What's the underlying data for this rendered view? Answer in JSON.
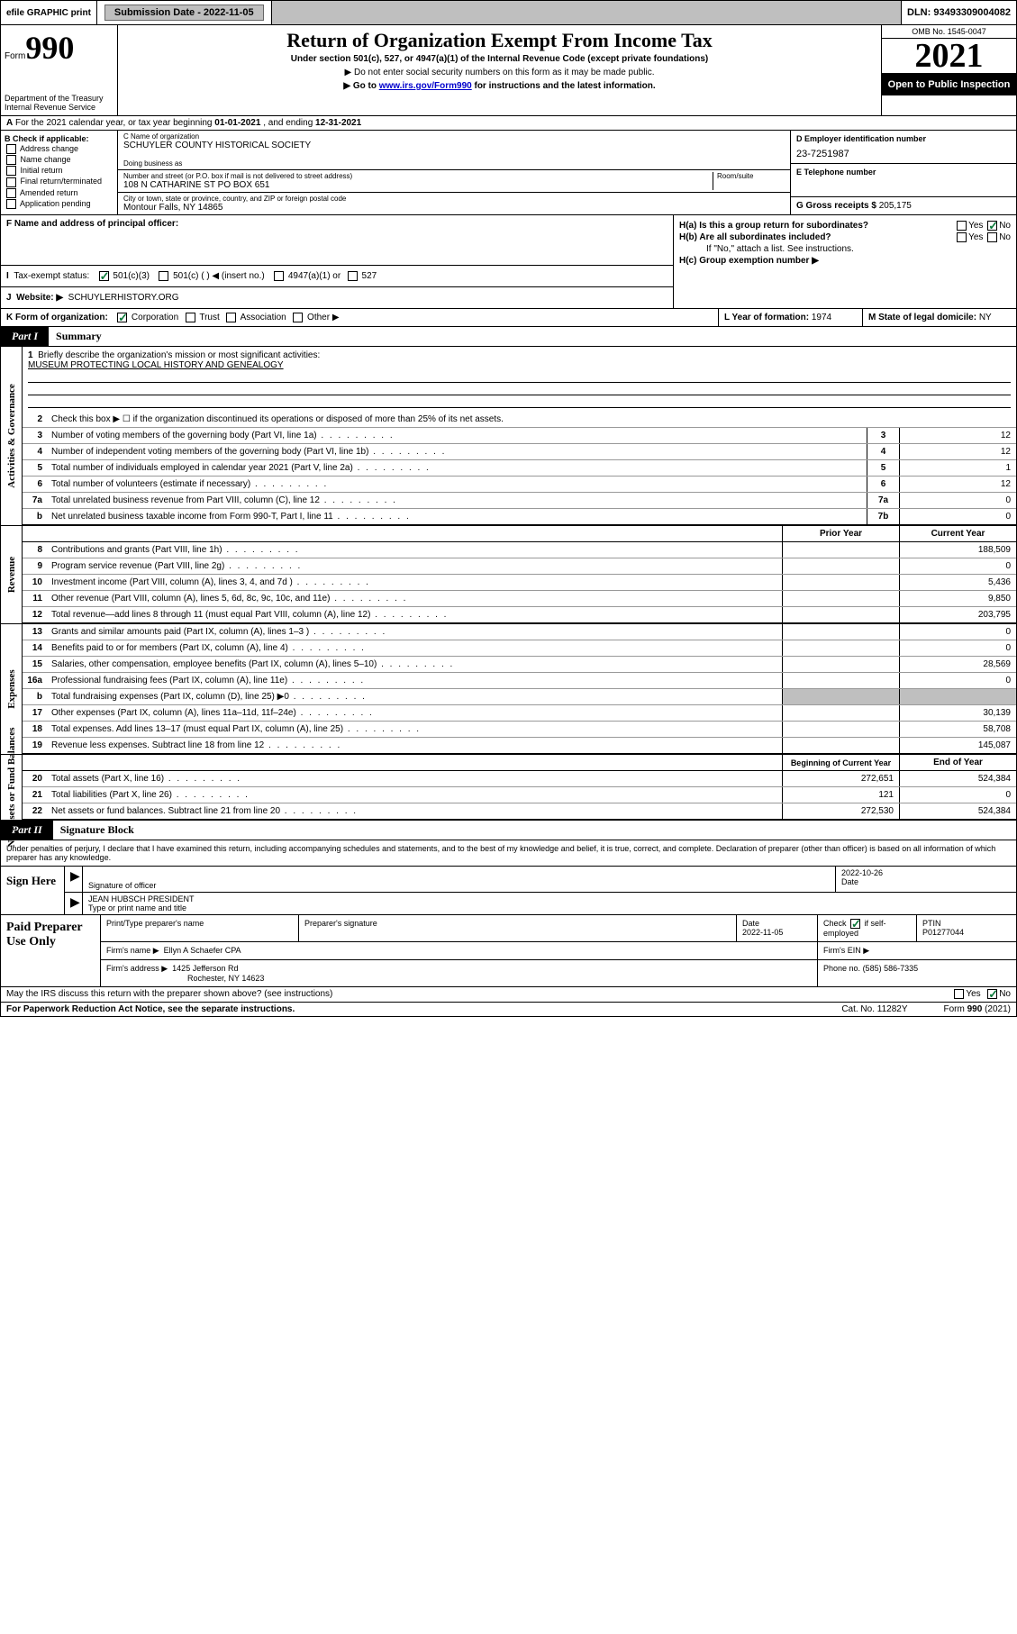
{
  "topbar": {
    "efile": "efile GRAPHIC print",
    "submission_label": "Submission Date - 2022-11-05",
    "dln": "DLN: 93493309004082"
  },
  "header": {
    "form_prefix": "Form",
    "form_number": "990",
    "dept": "Department of the Treasury",
    "irs": "Internal Revenue Service",
    "title": "Return of Organization Exempt From Income Tax",
    "subtitle": "Under section 501(c), 527, or 4947(a)(1) of the Internal Revenue Code (except private foundations)",
    "note1": "▶ Do not enter social security numbers on this form as it may be made public.",
    "note2_pre": "▶ Go to ",
    "note2_link": "www.irs.gov/Form990",
    "note2_post": " for instructions and the latest information.",
    "omb": "OMB No. 1545-0047",
    "year": "2021",
    "inspection": "Open to Public Inspection"
  },
  "row_a": {
    "label": "A",
    "text_pre": "For the 2021 calendar year, or tax year beginning ",
    "begin": "01-01-2021",
    "mid": " , and ending ",
    "end": "12-31-2021"
  },
  "section_b": {
    "label": "B Check if applicable:",
    "opts": [
      "Address change",
      "Name change",
      "Initial return",
      "Final return/terminated",
      "Amended return",
      "Application pending"
    ]
  },
  "section_c": {
    "name_label": "C Name of organization",
    "name": "SCHUYLER COUNTY HISTORICAL SOCIETY",
    "dba_label": "Doing business as",
    "addr_label": "Number and street (or P.O. box if mail is not delivered to street address)",
    "room_label": "Room/suite",
    "addr": "108 N CATHARINE ST PO BOX 651",
    "city_label": "City or town, state or province, country, and ZIP or foreign postal code",
    "city": "Montour Falls, NY  14865"
  },
  "section_d": {
    "label": "D Employer identification number",
    "val": "23-7251987",
    "e_label": "E Telephone number",
    "g_label": "G Gross receipts $",
    "g_val": "205,175"
  },
  "section_f": {
    "label": "F Name and address of principal officer:"
  },
  "section_h": {
    "ha": "H(a)  Is this a group return for subordinates?",
    "hb": "H(b)  Are all subordinates included?",
    "hb_note": "If \"No,\" attach a list. See instructions.",
    "hc": "H(c)  Group exemption number ▶",
    "yes": "Yes",
    "no": "No"
  },
  "row_i": {
    "label": "I",
    "text": "Tax-exempt status:",
    "opt1": "501(c)(3)",
    "opt2": "501(c) (   ) ◀ (insert no.)",
    "opt3": "4947(a)(1) or",
    "opt4": "527"
  },
  "row_j": {
    "label": "J",
    "text": "Website: ▶",
    "val": "SCHUYLERHISTORY.ORG"
  },
  "row_k": {
    "label": "K Form of organization:",
    "opts": [
      "Corporation",
      "Trust",
      "Association",
      "Other ▶"
    ],
    "l_label": "L Year of formation:",
    "l_val": "1974",
    "m_label": "M State of legal domicile:",
    "m_val": "NY"
  },
  "part1": {
    "label": "Part I",
    "title": "Summary"
  },
  "mission": {
    "num": "1",
    "label": "Briefly describe the organization's mission or most significant activities:",
    "text": "MUSEUM PROTECTING LOCAL HISTORY AND GENEALOGY"
  },
  "gov_lines": [
    {
      "num": "2",
      "desc": "Check this box ▶ ☐  if the organization discontinued its operations or disposed of more than 25% of its net assets.",
      "box": "",
      "val": ""
    },
    {
      "num": "3",
      "desc": "Number of voting members of the governing body (Part VI, line 1a)",
      "box": "3",
      "val": "12"
    },
    {
      "num": "4",
      "desc": "Number of independent voting members of the governing body (Part VI, line 1b)",
      "box": "4",
      "val": "12"
    },
    {
      "num": "5",
      "desc": "Total number of individuals employed in calendar year 2021 (Part V, line 2a)",
      "box": "5",
      "val": "1"
    },
    {
      "num": "6",
      "desc": "Total number of volunteers (estimate if necessary)",
      "box": "6",
      "val": "12"
    },
    {
      "num": "7a",
      "desc": "Total unrelated business revenue from Part VIII, column (C), line 12",
      "box": "7a",
      "val": "0"
    },
    {
      "num": "b",
      "desc": "Net unrelated business taxable income from Form 990-T, Part I, line 11",
      "box": "7b",
      "val": "0"
    }
  ],
  "rev_header": {
    "prior": "Prior Year",
    "current": "Current Year"
  },
  "rev_lines": [
    {
      "num": "8",
      "desc": "Contributions and grants (Part VIII, line 1h)",
      "prior": "",
      "cur": "188,509"
    },
    {
      "num": "9",
      "desc": "Program service revenue (Part VIII, line 2g)",
      "prior": "",
      "cur": "0"
    },
    {
      "num": "10",
      "desc": "Investment income (Part VIII, column (A), lines 3, 4, and 7d )",
      "prior": "",
      "cur": "5,436"
    },
    {
      "num": "11",
      "desc": "Other revenue (Part VIII, column (A), lines 5, 6d, 8c, 9c, 10c, and 11e)",
      "prior": "",
      "cur": "9,850"
    },
    {
      "num": "12",
      "desc": "Total revenue—add lines 8 through 11 (must equal Part VIII, column (A), line 12)",
      "prior": "",
      "cur": "203,795"
    }
  ],
  "exp_lines": [
    {
      "num": "13",
      "desc": "Grants and similar amounts paid (Part IX, column (A), lines 1–3 )",
      "prior": "",
      "cur": "0"
    },
    {
      "num": "14",
      "desc": "Benefits paid to or for members (Part IX, column (A), line 4)",
      "prior": "",
      "cur": "0"
    },
    {
      "num": "15",
      "desc": "Salaries, other compensation, employee benefits (Part IX, column (A), lines 5–10)",
      "prior": "",
      "cur": "28,569"
    },
    {
      "num": "16a",
      "desc": "Professional fundraising fees (Part IX, column (A), line 11e)",
      "prior": "",
      "cur": "0"
    },
    {
      "num": "b",
      "desc": "Total fundraising expenses (Part IX, column (D), line 25) ▶0",
      "prior": "shade",
      "cur": "shade"
    },
    {
      "num": "17",
      "desc": "Other expenses (Part IX, column (A), lines 11a–11d, 11f–24e)",
      "prior": "",
      "cur": "30,139"
    },
    {
      "num": "18",
      "desc": "Total expenses. Add lines 13–17 (must equal Part IX, column (A), line 25)",
      "prior": "",
      "cur": "58,708"
    },
    {
      "num": "19",
      "desc": "Revenue less expenses. Subtract line 18 from line 12",
      "prior": "",
      "cur": "145,087"
    }
  ],
  "na_header": {
    "begin": "Beginning of Current Year",
    "end": "End of Year"
  },
  "na_lines": [
    {
      "num": "20",
      "desc": "Total assets (Part X, line 16)",
      "begin": "272,651",
      "end": "524,384"
    },
    {
      "num": "21",
      "desc": "Total liabilities (Part X, line 26)",
      "begin": "121",
      "end": "0"
    },
    {
      "num": "22",
      "desc": "Net assets or fund balances. Subtract line 21 from line 20",
      "begin": "272,530",
      "end": "524,384"
    }
  ],
  "part2": {
    "label": "Part II",
    "title": "Signature Block"
  },
  "sig": {
    "decl": "Under penalties of perjury, I declare that I have examined this return, including accompanying schedules and statements, and to the best of my knowledge and belief, it is true, correct, and complete. Declaration of preparer (other than officer) is based on all information of which preparer has any knowledge.",
    "sign_here": "Sign Here",
    "sig_officer": "Signature of officer",
    "date_label": "Date",
    "date": "2022-10-26",
    "name": "JEAN HUBSCH  PRESIDENT",
    "name_label": "Type or print name and title"
  },
  "paid": {
    "label": "Paid Preparer Use Only",
    "h1": "Print/Type preparer's name",
    "h2": "Preparer's signature",
    "h3": "Date",
    "h3v": "2022-11-05",
    "h4": "Check ☑ if self-employed",
    "h5": "PTIN",
    "h5v": "P01277044",
    "firm_label": "Firm's name    ▶",
    "firm": "Ellyn A Schaefer CPA",
    "ein_label": "Firm's EIN ▶",
    "addr_label": "Firm's address ▶",
    "addr1": "1425 Jefferson Rd",
    "addr2": "Rochester, NY  14623",
    "phone_label": "Phone no.",
    "phone": "(585) 586-7335"
  },
  "footer": {
    "q": "May the IRS discuss this return with the preparer shown above? (see instructions)",
    "yes": "Yes",
    "no": "No",
    "pra": "For Paperwork Reduction Act Notice, see the separate instructions.",
    "cat": "Cat. No. 11282Y",
    "form": "Form 990 (2021)"
  },
  "sides": {
    "gov": "Activities & Governance",
    "rev": "Revenue",
    "exp": "Expenses",
    "na": "Net Assets or Fund Balances"
  }
}
